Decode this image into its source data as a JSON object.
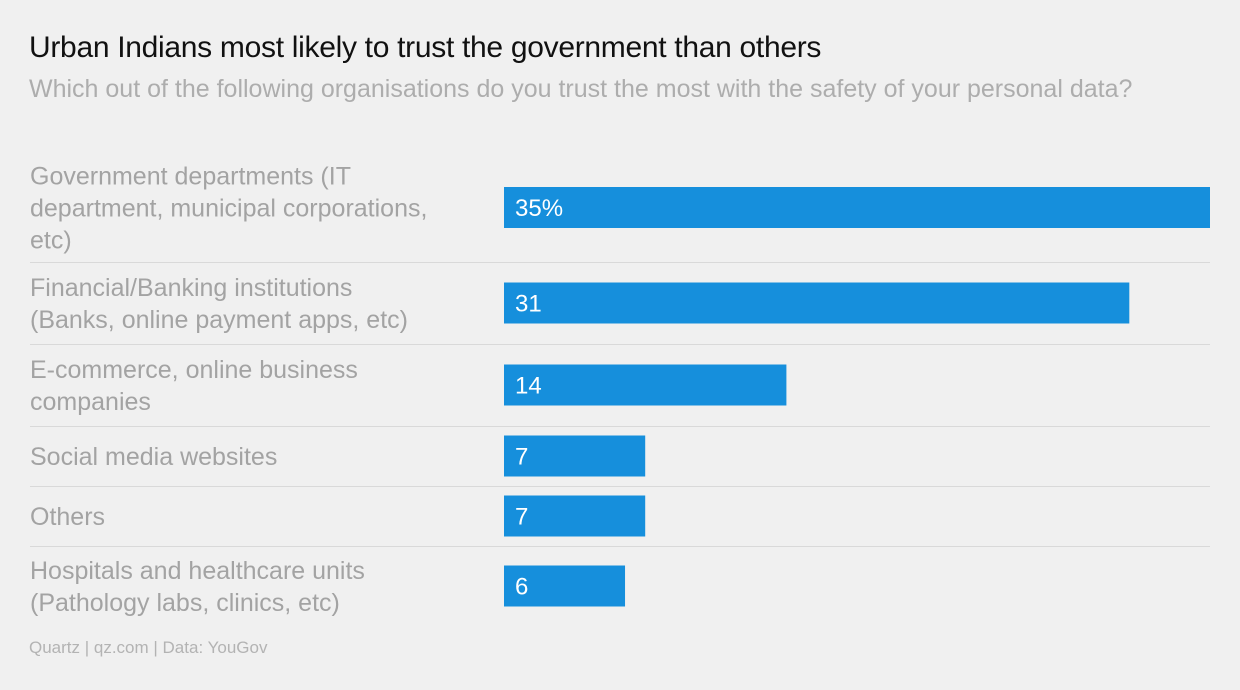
{
  "header": {
    "title": "Urban Indians most likely to trust the government than others",
    "subtitle": "Which out of the following organisations do you trust the most with the safety of your personal data?"
  },
  "footer": {
    "source": "Quartz | qz.com | Data: YouGov"
  },
  "colors": {
    "bar": "#168fdc",
    "background": "#f0f0f0",
    "divider": "#d9d9d9"
  },
  "chart_data": {
    "type": "bar",
    "orientation": "horizontal",
    "title": "Urban Indians most likely to trust the government than others",
    "subtitle": "Which out of the following organisations do you trust the most with the safety of your personal data?",
    "categories": [
      [
        "Government departments (IT",
        "department, municipal corporations,",
        "etc)"
      ],
      [
        "Financial/Banking institutions",
        "(Banks, online payment apps, etc)"
      ],
      [
        "E-commerce, online business",
        "companies"
      ],
      [
        "Social media websites"
      ],
      [
        "Others"
      ],
      [
        "Hospitals and healthcare units",
        "(Pathology labs, clinics, etc)"
      ]
    ],
    "values": [
      35,
      31,
      14,
      7,
      7,
      6
    ],
    "value_labels": [
      "35%",
      "31",
      "14",
      "7",
      "7",
      "6"
    ],
    "unit": "%",
    "xlim": [
      0,
      35
    ],
    "grid": false,
    "legend": "none"
  }
}
